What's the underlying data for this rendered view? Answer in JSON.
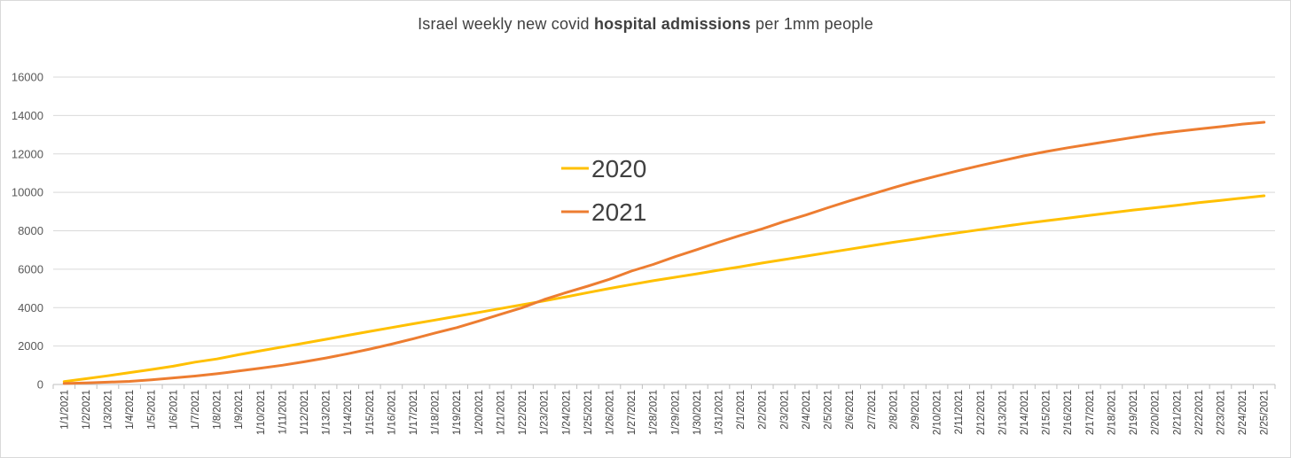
{
  "chart_data": {
    "type": "line",
    "title_prefix": "Israel weekly new covid ",
    "title_bold": "hospital admissions",
    "title_suffix": "  per 1mm people",
    "xlabel": "",
    "ylabel": "",
    "ylim": [
      0,
      16000
    ],
    "yticks": [
      0,
      2000,
      4000,
      6000,
      8000,
      10000,
      12000,
      14000,
      16000
    ],
    "grid": true,
    "legend_position": "center",
    "categories": [
      "1/1/2021",
      "1/2/2021",
      "1/3/2021",
      "1/4/2021",
      "1/5/2021",
      "1/6/2021",
      "1/7/2021",
      "1/8/2021",
      "1/9/2021",
      "1/10/2021",
      "1/11/2021",
      "1/12/2021",
      "1/13/2021",
      "1/14/2021",
      "1/15/2021",
      "1/16/2021",
      "1/17/2021",
      "1/18/2021",
      "1/19/2021",
      "1/20/2021",
      "1/21/2021",
      "1/22/2021",
      "1/23/2021",
      "1/24/2021",
      "1/25/2021",
      "1/26/2021",
      "1/27/2021",
      "1/28/2021",
      "1/29/2021",
      "1/30/2021",
      "1/31/2021",
      "2/1/2021",
      "2/2/2021",
      "2/3/2021",
      "2/4/2021",
      "2/5/2021",
      "2/6/2021",
      "2/7/2021",
      "2/8/2021",
      "2/9/2021",
      "2/10/2021",
      "2/11/2021",
      "2/12/2021",
      "2/13/2021",
      "2/14/2021",
      "2/15/2021",
      "2/16/2021",
      "2/17/2021",
      "2/18/2021",
      "2/19/2021",
      "2/20/2021",
      "2/21/2021",
      "2/22/2021",
      "2/23/2021",
      "2/24/2021",
      "2/25/2021"
    ],
    "series": [
      {
        "name": "2020",
        "color": "#FFC000",
        "values": [
          150,
          300,
          450,
          620,
          780,
          950,
          1160,
          1330,
          1550,
          1750,
          1950,
          2150,
          2350,
          2560,
          2760,
          2960,
          3160,
          3350,
          3550,
          3750,
          3950,
          4150,
          4350,
          4560,
          4780,
          5000,
          5200,
          5400,
          5580,
          5760,
          5950,
          6130,
          6320,
          6500,
          6680,
          6860,
          7040,
          7220,
          7400,
          7560,
          7740,
          7900,
          8060,
          8220,
          8380,
          8520,
          8660,
          8800,
          8940,
          9080,
          9200,
          9330,
          9460,
          9580,
          9700,
          9820
        ]
      },
      {
        "name": "2021",
        "color": "#ED7D31",
        "values": [
          50,
          80,
          120,
          160,
          240,
          340,
          440,
          560,
          700,
          850,
          1000,
          1180,
          1380,
          1600,
          1840,
          2100,
          2380,
          2680,
          2960,
          3300,
          3650,
          4000,
          4420,
          4780,
          5120,
          5480,
          5900,
          6250,
          6650,
          7020,
          7400,
          7760,
          8100,
          8480,
          8820,
          9200,
          9560,
          9900,
          10240,
          10560,
          10850,
          11130,
          11400,
          11650,
          11900,
          12120,
          12320,
          12500,
          12680,
          12860,
          13030,
          13170,
          13300,
          13420,
          13550,
          13650
        ]
      }
    ]
  }
}
